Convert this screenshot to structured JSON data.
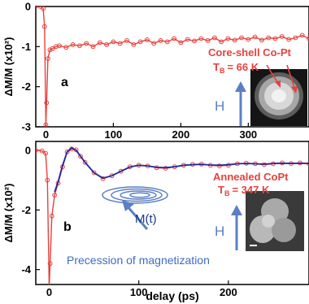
{
  "chart_data": [
    {
      "type": "line",
      "panel_label": "a",
      "ylabel": "ΔM/M (x10²)",
      "xlim": [
        -15,
        390
      ],
      "ylim": [
        -3,
        0
      ],
      "x_ticks": [
        "0",
        "100",
        "200",
        "300"
      ],
      "x_tick_values": [
        0,
        100,
        200,
        300
      ],
      "y_ticks": [
        "0",
        "-1",
        "-2",
        "-3"
      ],
      "y_tick_values": [
        0,
        -1,
        -2,
        -3
      ],
      "series": [
        {
          "color": "#e8413c",
          "x": [
            -15,
            -8,
            -4,
            -2,
            0,
            1,
            3,
            6,
            10,
            15,
            20,
            30,
            40,
            50,
            60,
            70,
            80,
            90,
            100,
            110,
            120,
            130,
            140,
            150,
            160,
            170,
            180,
            190,
            200,
            210,
            220,
            230,
            240,
            250,
            260,
            270,
            280,
            290,
            300,
            310,
            320,
            330,
            340,
            350,
            360,
            370,
            380,
            390
          ],
          "y": [
            0,
            0,
            -0.05,
            -0.5,
            -2.95,
            -2.4,
            -1.3,
            -1.08,
            -1.05,
            -1.0,
            -0.98,
            -1.02,
            -0.95,
            -0.98,
            -0.92,
            -1.0,
            -0.9,
            -0.95,
            -0.88,
            -0.92,
            -0.85,
            -0.95,
            -0.88,
            -0.83,
            -0.92,
            -0.85,
            -0.88,
            -0.8,
            -0.9,
            -0.82,
            -0.86,
            -0.8,
            -0.85,
            -0.78,
            -0.88,
            -0.8,
            -0.84,
            -0.78,
            -0.82,
            -0.76,
            -0.84,
            -0.78,
            -0.8,
            -0.75,
            -0.82,
            -0.78,
            -0.72,
            -0.8
          ]
        }
      ],
      "annotations": {
        "sample": "Core-shell Co-Pt",
        "tb_prefix": "T",
        "tb_sub": "B",
        "tb_value": "= 66 K",
        "field": "H"
      }
    },
    {
      "type": "line",
      "panel_label": "b",
      "xlabel": "delay (ps)",
      "ylabel": "ΔM/M (x10²)",
      "xlim": [
        -15,
        290
      ],
      "ylim": [
        -4.5,
        0.3
      ],
      "x_ticks": [
        "0",
        "100",
        "200"
      ],
      "x_tick_values": [
        0,
        100,
        200
      ],
      "y_ticks": [
        "0",
        "-2",
        "-4"
      ],
      "y_tick_values": [
        0,
        -2,
        -4
      ],
      "series": [
        {
          "color": "#e8413c",
          "x": [
            -15,
            -8,
            -4,
            -2,
            0,
            1,
            3,
            6,
            10,
            15,
            20,
            25,
            30,
            35,
            40,
            50,
            60,
            70,
            80,
            90,
            100,
            110,
            120,
            130,
            140,
            150,
            160,
            170,
            180,
            190,
            200,
            210,
            220,
            230,
            240,
            250,
            260,
            270,
            280,
            290
          ],
          "y": [
            0,
            -0.02,
            -0.1,
            -1.0,
            -4.6,
            -3.8,
            -2.2,
            -1.5,
            -1.1,
            -0.55,
            -0.05,
            0.05,
            0.02,
            -0.2,
            -0.4,
            -0.75,
            -0.95,
            -0.85,
            -0.7,
            -0.55,
            -0.5,
            -0.52,
            -0.58,
            -0.6,
            -0.55,
            -0.5,
            -0.47,
            -0.46,
            -0.5,
            -0.52,
            -0.5,
            -0.45,
            -0.43,
            -0.45,
            -0.48,
            -0.45,
            -0.42,
            -0.44,
            -0.42,
            -0.45
          ]
        },
        {
          "color": "#1f2aa0",
          "x": [
            6,
            10,
            15,
            20,
            25,
            30,
            35,
            40,
            50,
            60,
            70,
            80,
            90,
            100,
            110,
            120,
            130,
            140,
            150,
            160,
            170,
            180,
            190,
            200,
            210,
            220,
            230,
            240,
            250,
            260,
            270,
            280,
            290
          ],
          "y": [
            -1.4,
            -1.05,
            -0.5,
            -0.05,
            0.08,
            0.0,
            -0.2,
            -0.4,
            -0.75,
            -0.93,
            -0.85,
            -0.7,
            -0.56,
            -0.5,
            -0.52,
            -0.57,
            -0.58,
            -0.55,
            -0.5,
            -0.48,
            -0.47,
            -0.49,
            -0.5,
            -0.48,
            -0.45,
            -0.44,
            -0.45,
            -0.46,
            -0.44,
            -0.43,
            -0.44,
            -0.43,
            -0.44
          ]
        }
      ],
      "annotations": {
        "sample": "Annealed  CoPt",
        "tb_prefix": "T",
        "tb_sub": "B",
        "tb_value": "= 347 K",
        "field": "H",
        "mt_label": "M(t)",
        "precession_label": "Precession of magnetization"
      }
    }
  ]
}
